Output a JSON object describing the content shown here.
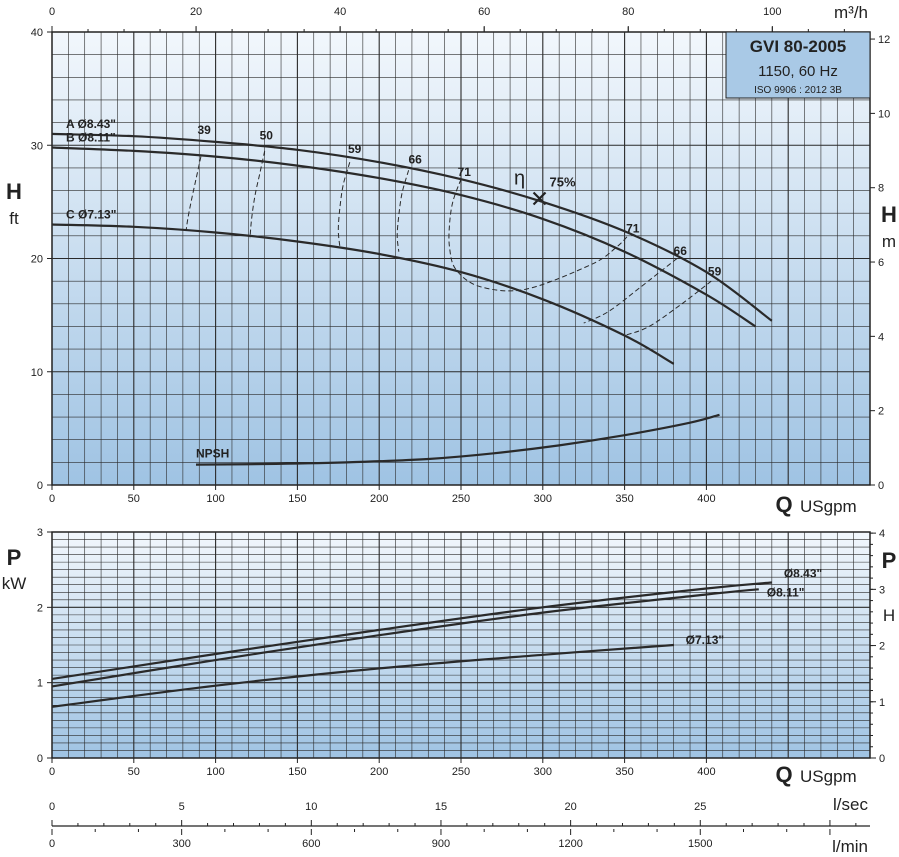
{
  "chart_data": [
    {
      "type": "line",
      "panel": "head",
      "title_box": {
        "model": "GVI 80-2005",
        "speed": "1150, 60 Hz",
        "standard": "ISO 9906 : 2012 3B"
      },
      "xlabel": {
        "symbol": "Q",
        "unit": "USgpm"
      },
      "ylabel_left": {
        "symbol": "H",
        "unit": "ft"
      },
      "ylabel_right": {
        "symbol": "H",
        "unit": "m"
      },
      "x2label": "m³/h",
      "xlim": [
        0,
        500
      ],
      "ylim": [
        0,
        40
      ],
      "y2lim": [
        0,
        12.19
      ],
      "x_ticks": [
        "0",
        "50",
        "100",
        "150",
        "200",
        "250",
        "300",
        "350",
        "400"
      ],
      "y_ticks": [
        "0",
        "10",
        "20",
        "30",
        "40"
      ],
      "y2_ticks": [
        "0",
        "2",
        "4",
        "6",
        "8",
        "10",
        "12"
      ],
      "x2_ticks": [
        "0",
        "20",
        "40",
        "60",
        "80",
        "100"
      ],
      "series": [
        {
          "name": "A Ø8.43\"",
          "x": [
            0,
            50,
            100,
            150,
            200,
            250,
            300,
            350,
            400,
            440
          ],
          "y": [
            31.0,
            30.8,
            30.3,
            29.6,
            28.5,
            27.0,
            25.0,
            22.4,
            18.8,
            14.5
          ]
        },
        {
          "name": "B Ø8.11\"",
          "x": [
            0,
            50,
            100,
            150,
            200,
            250,
            300,
            350,
            400,
            430
          ],
          "y": [
            29.8,
            29.5,
            29.0,
            28.2,
            27.1,
            25.6,
            23.5,
            20.6,
            16.8,
            14.0
          ]
        },
        {
          "name": "C Ø7.13\"",
          "x": [
            0,
            50,
            100,
            150,
            200,
            250,
            300,
            350,
            380
          ],
          "y": [
            23.0,
            22.8,
            22.3,
            21.5,
            20.4,
            18.8,
            16.4,
            13.2,
            10.7
          ]
        },
        {
          "name": "NPSH",
          "x": [
            88,
            130,
            180,
            230,
            270,
            310,
            350,
            390,
            408
          ],
          "y": [
            1.8,
            1.85,
            2.0,
            2.3,
            2.8,
            3.5,
            4.4,
            5.5,
            6.2
          ]
        }
      ],
      "efficiency": {
        "symbol": "η",
        "best": {
          "label": "75%",
          "x": 298,
          "y": 25.3
        },
        "labels": [
          {
            "text": "39",
            "x": 93,
            "y": 31.0
          },
          {
            "text": "50",
            "x": 131,
            "y": 30.5
          },
          {
            "text": "59",
            "x": 185,
            "y": 29.3
          },
          {
            "text": "66",
            "x": 222,
            "y": 28.4
          },
          {
            "text": "71",
            "x": 252,
            "y": 27.3
          },
          {
            "text": "71",
            "x": 355,
            "y": 22.3
          },
          {
            "text": "66",
            "x": 384,
            "y": 20.3
          },
          {
            "text": "59",
            "x": 405,
            "y": 18.5
          }
        ],
        "contours": [
          {
            "x": [
              91,
              88,
              85,
              83,
              82
            ],
            "y": [
              29.0,
              27.0,
              25.0,
              23.5,
              22.5
            ]
          },
          {
            "x": [
              130,
              127,
              124,
              122,
              121
            ],
            "y": [
              29.5,
              27.5,
              25.5,
              23.5,
              21.8
            ]
          },
          {
            "x": [
              182,
              178,
              176,
              175,
              176
            ],
            "y": [
              28.5,
              26.5,
              24.5,
              22.5,
              21.0
            ]
          },
          {
            "x": [
              218,
              214,
              212,
              211,
              212
            ],
            "y": [
              27.8,
              25.8,
              23.8,
              22.0,
              20.6
            ]
          },
          {
            "x": [
              250,
              245,
              243,
              243,
              247,
              262,
              290,
              330,
              345,
              352
            ],
            "y": [
              27.0,
              25.0,
              23.0,
              21.0,
              19.0,
              17.5,
              17.3,
              19.5,
              21.0,
              22.0
            ]
          },
          {
            "x": [
              382,
              360,
              340,
              325
            ],
            "y": [
              20.0,
              17.5,
              15.3,
              14.3
            ]
          },
          {
            "x": [
              403,
              385,
              365,
              350
            ],
            "y": [
              18.0,
              16.0,
              14.0,
              13.2
            ]
          }
        ]
      }
    },
    {
      "type": "line",
      "panel": "power",
      "xlabel": {
        "symbol": "Q",
        "unit": "USgpm"
      },
      "ylabel_left": {
        "symbol": "P",
        "unit": "kW"
      },
      "ylabel_right": {
        "symbol": "P",
        "unit": "H"
      },
      "xlim": [
        0,
        500
      ],
      "ylim": [
        0,
        3
      ],
      "y2lim": [
        0,
        4.02
      ],
      "x_ticks": [
        "0",
        "50",
        "100",
        "150",
        "200",
        "250",
        "300",
        "350",
        "400"
      ],
      "y_ticks": [
        "0",
        "1",
        "2",
        "3"
      ],
      "y2_ticks": [
        "0",
        "1",
        "2",
        "3",
        "4"
      ],
      "series": [
        {
          "name": "Ø8.43\"",
          "x": [
            0,
            100,
            200,
            300,
            400,
            440
          ],
          "y": [
            1.05,
            1.38,
            1.7,
            2.0,
            2.25,
            2.33
          ]
        },
        {
          "name": "Ø8.11\"",
          "x": [
            0,
            100,
            200,
            300,
            400,
            432
          ],
          "y": [
            0.95,
            1.3,
            1.63,
            1.93,
            2.17,
            2.24
          ]
        },
        {
          "name": "Ø7.13\"",
          "x": [
            0,
            100,
            200,
            300,
            380
          ],
          "y": [
            0.68,
            0.96,
            1.19,
            1.37,
            1.5
          ]
        }
      ]
    },
    {
      "type": "axis",
      "panel": "flow-scales",
      "lsec": {
        "unit": "l/sec",
        "ticks": [
          "0",
          "5",
          "10",
          "15",
          "20",
          "25"
        ]
      },
      "lmin": {
        "unit": "l/min",
        "ticks": [
          "0",
          "300",
          "600",
          "900",
          "1200",
          "1500"
        ]
      }
    }
  ]
}
